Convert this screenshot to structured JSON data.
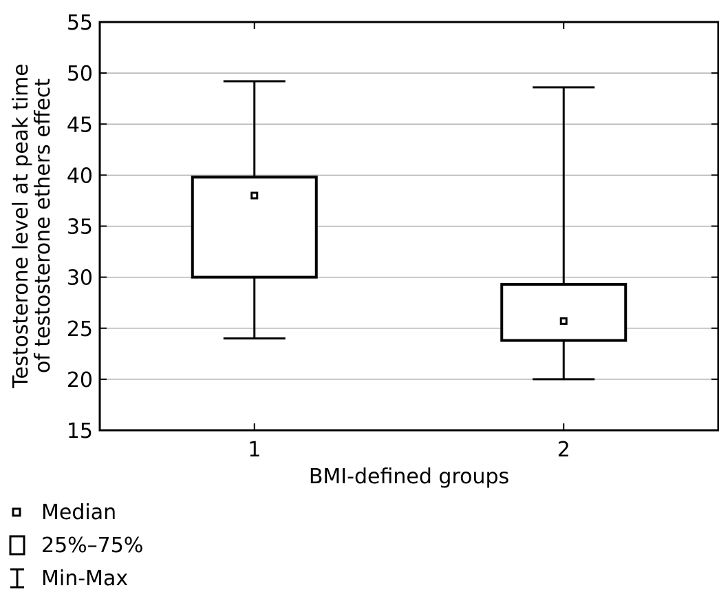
{
  "chart_data": {
    "type": "boxplot",
    "title": "",
    "xlabel": "BMI-defined groups",
    "ylabel": [
      "Testosterone level at peak time",
      "of testosterone ethers effect"
    ],
    "ylim": [
      15,
      55
    ],
    "yticks": [
      15,
      20,
      25,
      30,
      35,
      40,
      45,
      50,
      55
    ],
    "grid": true,
    "categories": [
      "1",
      "2"
    ],
    "boxes": [
      {
        "category": "1",
        "min": 24.0,
        "q1": 30.0,
        "median": 38.0,
        "q3": 39.8,
        "max": 49.2
      },
      {
        "category": "2",
        "min": 20.0,
        "q1": 23.8,
        "median": 25.7,
        "q3": 29.3,
        "max": 48.6
      }
    ],
    "legend": {
      "placement": "bottom-left",
      "items": [
        {
          "symbol": "median-square-icon",
          "label": "Median"
        },
        {
          "symbol": "box-icon",
          "label": "25%–75%"
        },
        {
          "symbol": "whisker-icon",
          "label": "Min-Max"
        }
      ]
    }
  }
}
